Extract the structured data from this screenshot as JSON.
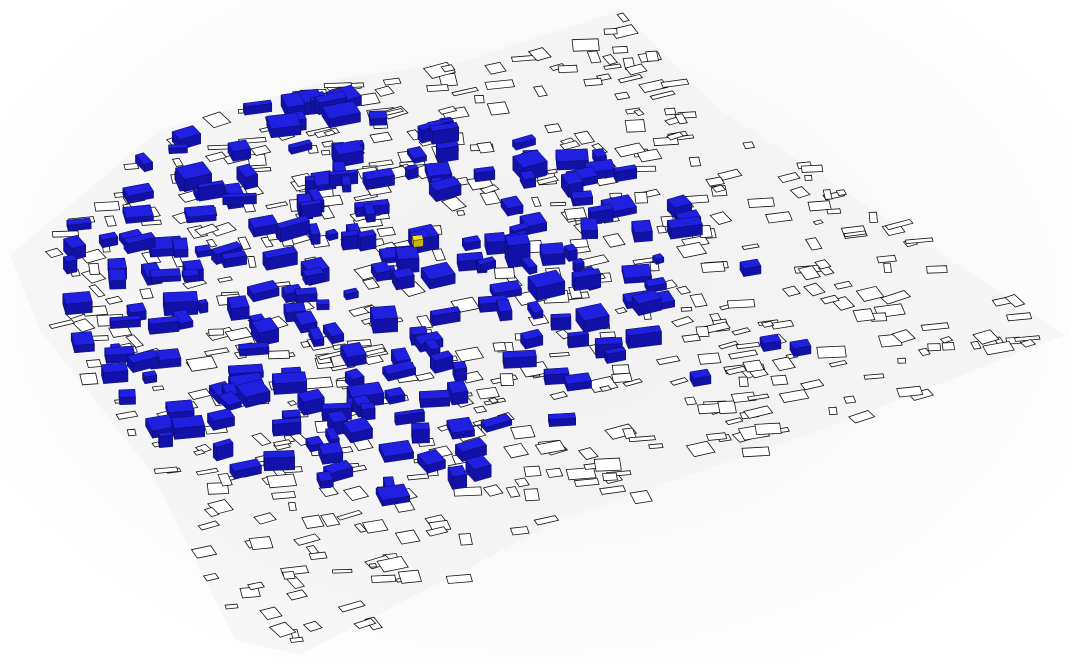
{
  "scene": {
    "view": "3d-axonometric-massing",
    "background_color": "#ffffff",
    "ground_shadow_color": "#ececec",
    "outline_color": "#111111",
    "highlight_color": "#2020e0",
    "highlight_side_color": "#1212a8",
    "target_color": "#f2e21a",
    "target_side_color": "#c9b800",
    "legend": [],
    "labels": []
  },
  "layers": [
    {
      "name": "building-footprints",
      "style": "outline",
      "color_key": "outline_color"
    },
    {
      "name": "selected-buildings",
      "style": "extruded",
      "color_key": "highlight_color"
    },
    {
      "name": "target-building",
      "style": "extruded",
      "color_key": "target_color"
    }
  ]
}
